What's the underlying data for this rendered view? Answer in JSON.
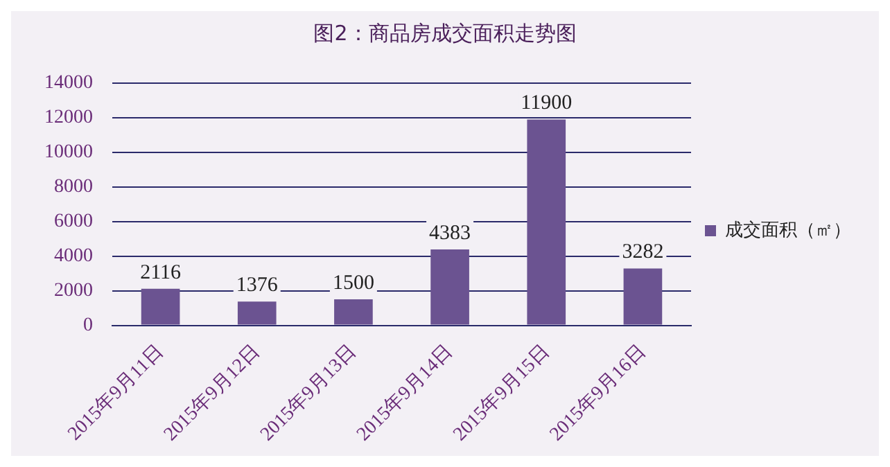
{
  "chart_data": {
    "type": "bar",
    "title": "图2：商品房成交面积走势图",
    "categories": [
      "2015年9月11日",
      "2015年9月12日",
      "2015年9月13日",
      "2015年9月14日",
      "2015年9月15日",
      "2015年9月16日"
    ],
    "series": [
      {
        "name": "成交面积（㎡）",
        "color": "#6b5391",
        "values": [
          2116,
          1376,
          1500,
          4383,
          11900,
          3282
        ]
      }
    ],
    "ylim": [
      0,
      14000
    ],
    "yticks": [
      0,
      2000,
      4000,
      6000,
      8000,
      10000,
      12000,
      14000
    ],
    "grid": "y",
    "legend": "right",
    "data_labels": true
  }
}
